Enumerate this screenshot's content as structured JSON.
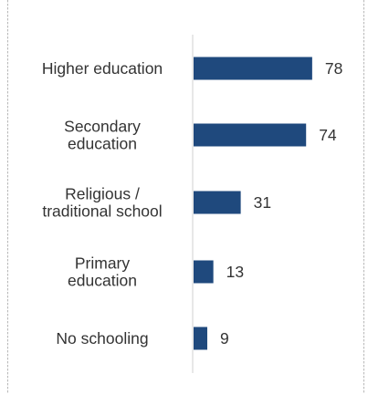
{
  "chart_data": {
    "type": "bar",
    "orientation": "horizontal",
    "categories": [
      [
        "Higher education"
      ],
      [
        "Secondary",
        "education"
      ],
      [
        "Religious /",
        "traditional school"
      ],
      [
        "Primary",
        "education"
      ],
      [
        "No schooling"
      ]
    ],
    "values": [
      78,
      74,
      31,
      13,
      9
    ],
    "title": "",
    "xlabel": "",
    "ylabel": "",
    "xlim": [
      0,
      100
    ],
    "grid": false,
    "bar_color": "#1f497d",
    "text_color": "#333333",
    "axis_color": "#d0d0d0"
  }
}
